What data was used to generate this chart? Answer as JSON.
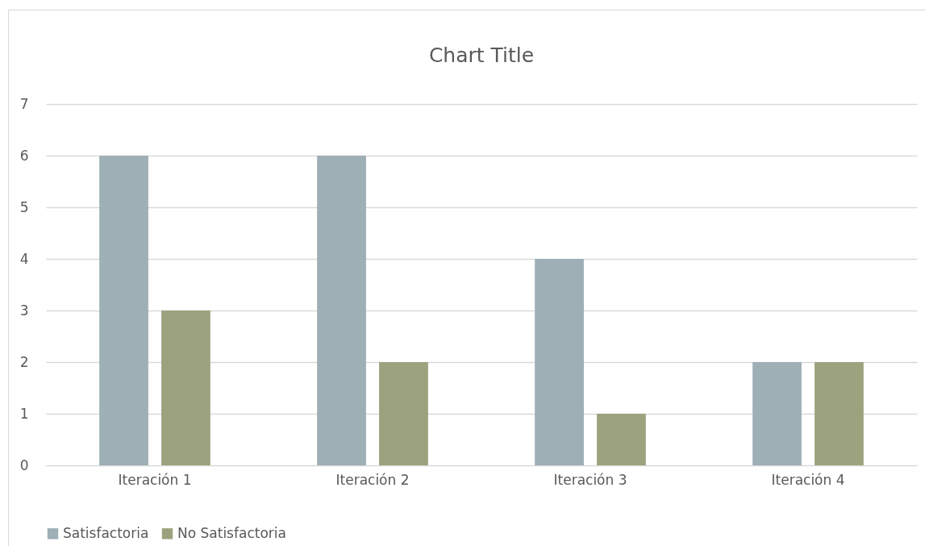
{
  "chart_data": {
    "type": "bar",
    "title": "Chart Title",
    "categories": [
      "Iteración 1",
      "Iteración 2",
      "Iteración 3",
      "Iteración 4"
    ],
    "series": [
      {
        "name": "Satisfactoria",
        "color": "#9eafb5",
        "values": [
          6,
          6,
          4,
          2
        ]
      },
      {
        "name": "No Satisfactoria",
        "color": "#9ca27e",
        "values": [
          3,
          2,
          1,
          2
        ]
      }
    ],
    "ylim": [
      0,
      7
    ],
    "yticks": [
      0,
      1,
      2,
      3,
      4,
      5,
      6,
      7
    ],
    "grid": "y",
    "legend": "bottom"
  }
}
